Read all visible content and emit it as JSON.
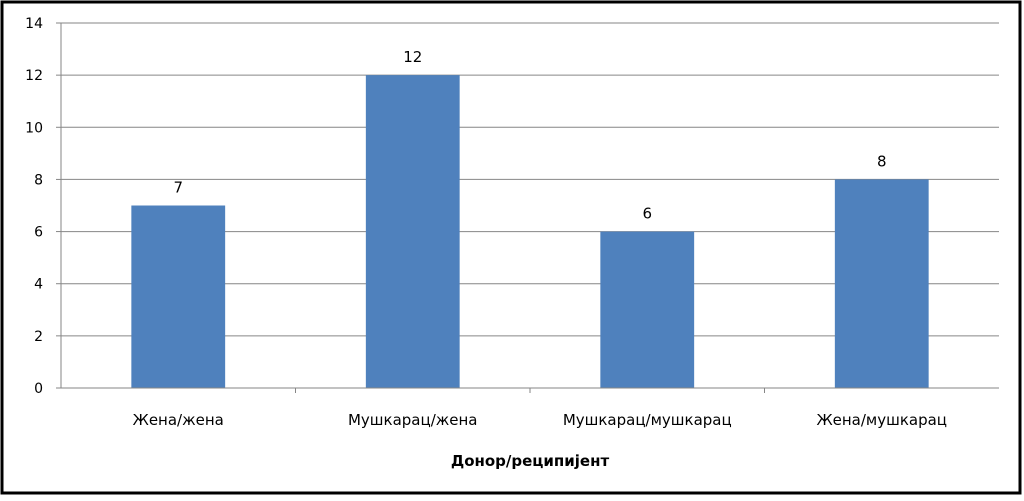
{
  "chart_data": {
    "type": "bar",
    "title": "",
    "xlabel": "Донор/реципијент",
    "ylabel": "",
    "categories": [
      "Жена/жена",
      "Мушкарац/жена",
      "Мушкарац/мушкарац",
      "Жена/мушкарац"
    ],
    "values": [
      7,
      12,
      6,
      8
    ],
    "data_labels": [
      "7",
      "12",
      "6",
      "8"
    ],
    "yticks": [
      0,
      2,
      4,
      6,
      8,
      10,
      12,
      14
    ],
    "ylim": [
      0,
      14
    ],
    "grid": true,
    "legend": "none",
    "colors": {
      "bar": "#4F81BD",
      "grid": "#868686",
      "axis": "#868686",
      "frame": "#000000",
      "background": "#ffffff"
    }
  }
}
